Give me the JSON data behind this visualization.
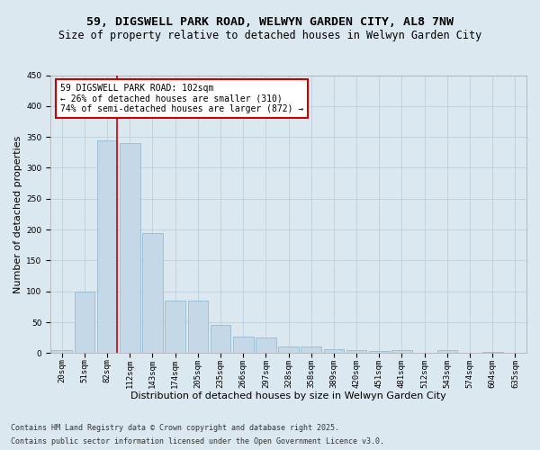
{
  "title1": "59, DIGSWELL PARK ROAD, WELWYN GARDEN CITY, AL8 7NW",
  "title2": "Size of property relative to detached houses in Welwyn Garden City",
  "xlabel": "Distribution of detached houses by size in Welwyn Garden City",
  "ylabel": "Number of detached properties",
  "categories": [
    "20sqm",
    "51sqm",
    "82sqm",
    "112sqm",
    "143sqm",
    "174sqm",
    "205sqm",
    "235sqm",
    "266sqm",
    "297sqm",
    "328sqm",
    "358sqm",
    "389sqm",
    "420sqm",
    "451sqm",
    "481sqm",
    "512sqm",
    "543sqm",
    "574sqm",
    "604sqm",
    "635sqm"
  ],
  "values": [
    5,
    100,
    345,
    340,
    195,
    85,
    85,
    45,
    27,
    25,
    10,
    10,
    7,
    5,
    4,
    5,
    1,
    5,
    1,
    2,
    1
  ],
  "bar_color": "#c5d8e8",
  "bar_edge_color": "#8ab4cc",
  "vline_x_index": 2,
  "vline_color": "#cc0000",
  "annotation_line1": "59 DIGSWELL PARK ROAD: 102sqm",
  "annotation_line2": "← 26% of detached houses are smaller (310)",
  "annotation_line3": "74% of semi-detached houses are larger (872) →",
  "annotation_box_color": "#ffffff",
  "annotation_box_edge": "#cc0000",
  "ylim": [
    0,
    450
  ],
  "yticks": [
    0,
    50,
    100,
    150,
    200,
    250,
    300,
    350,
    400,
    450
  ],
  "grid_color": "#b8ccd8",
  "background_color": "#dce8f0",
  "footer1": "Contains HM Land Registry data © Crown copyright and database right 2025.",
  "footer2": "Contains public sector information licensed under the Open Government Licence v3.0.",
  "title1_fontsize": 9.5,
  "title2_fontsize": 8.5,
  "xlabel_fontsize": 8,
  "ylabel_fontsize": 8,
  "tick_fontsize": 6.5,
  "annot_fontsize": 7,
  "footer_fontsize": 6
}
